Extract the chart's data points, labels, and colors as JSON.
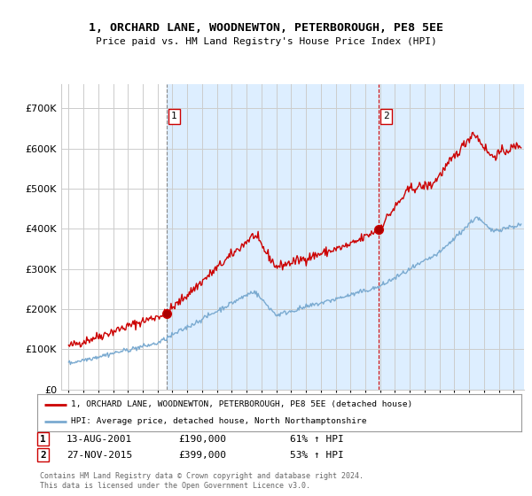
{
  "title": "1, ORCHARD LANE, WOODNEWTON, PETERBOROUGH, PE8 5EE",
  "subtitle": "Price paid vs. HM Land Registry's House Price Index (HPI)",
  "background_color": "#ffffff",
  "plot_bg_color": "#ffffff",
  "shaded_bg_color": "#ddeeff",
  "grid_color": "#cccccc",
  "red_line_color": "#cc0000",
  "blue_line_color": "#7aaad0",
  "transaction1_date": "13-AUG-2001",
  "transaction1_price": 190000,
  "transaction1_label": "61% ↑ HPI",
  "transaction1_year": 2001.62,
  "transaction2_date": "27-NOV-2015",
  "transaction2_price": 399000,
  "transaction2_label": "53% ↑ HPI",
  "transaction2_year": 2015.91,
  "legend_line1": "1, ORCHARD LANE, WOODNEWTON, PETERBOROUGH, PE8 5EE (detached house)",
  "legend_line2": "HPI: Average price, detached house, North Northamptonshire",
  "footer": "Contains HM Land Registry data © Crown copyright and database right 2024.\nThis data is licensed under the Open Government Licence v3.0.",
  "ylim": [
    0,
    760000
  ],
  "yticks": [
    0,
    100000,
    200000,
    300000,
    400000,
    500000,
    600000,
    700000
  ],
  "xmin": 1994.5,
  "xmax": 2025.7
}
